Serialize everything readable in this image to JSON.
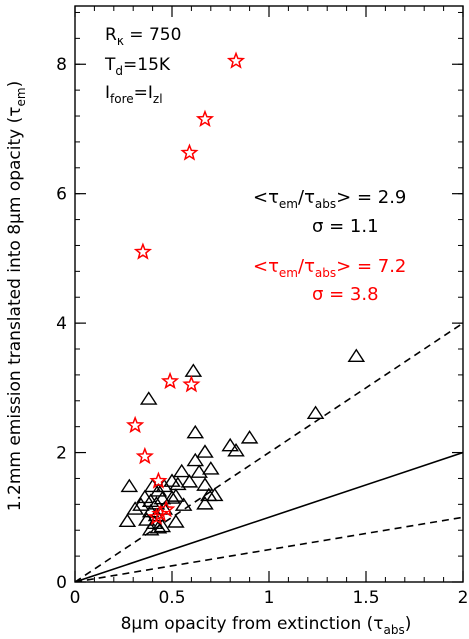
{
  "chart_data": {
    "type": "scatter",
    "xlabel": {
      "main": "8μm opacity from extinction (τ",
      "sub": "abs",
      "close": ")"
    },
    "ylabel": {
      "main": "1.2mm emission translated into 8μm opacity (τ",
      "sub": "em",
      "close": ")"
    },
    "xlim": [
      0,
      2
    ],
    "ylim": [
      0,
      8.9
    ],
    "x_ticks": [
      "0",
      "0.5",
      "1",
      "1.5",
      "2"
    ],
    "x_tick_values": [
      0,
      0.5,
      1,
      1.5,
      2
    ],
    "y_ticks": [
      "0",
      "2",
      "4",
      "6",
      "8"
    ],
    "y_tick_values": [
      0,
      2,
      4,
      6,
      8
    ],
    "params": {
      "line1": {
        "main": "R",
        "sub": "κ",
        "rest": " = 750"
      },
      "line2": {
        "main": "T",
        "sub": "d",
        "rest": "=15K"
      },
      "line3": {
        "main": "I",
        "sub": "fore",
        "mid": "=I",
        "sub2": "zl"
      }
    },
    "stats_black": {
      "mean": {
        "pre": "<τ",
        "sub1": "em",
        "mid": "/τ",
        "sub2": "abs",
        "post": "> = 2.9"
      },
      "sigma": "σ = 1.1"
    },
    "stats_red": {
      "mean": {
        "pre": "<τ",
        "sub1": "em",
        "mid": "/τ",
        "sub2": "abs",
        "post": "> = 7.2"
      },
      "sigma": "σ = 3.8"
    },
    "lines": [
      {
        "style": "solid",
        "slope": 1
      },
      {
        "style": "dashed",
        "slope": 2
      },
      {
        "style": "dashed",
        "slope": 0.5
      }
    ],
    "series": [
      {
        "marker": "triangle",
        "color": "#000000",
        "points": [
          [
            0.61,
            3.25
          ],
          [
            0.38,
            2.82
          ],
          [
            1.45,
            3.48
          ],
          [
            1.24,
            2.6
          ],
          [
            0.62,
            2.3
          ],
          [
            0.9,
            2.22
          ],
          [
            0.8,
            2.1
          ],
          [
            0.83,
            2.02
          ],
          [
            0.67,
            2.0
          ],
          [
            0.62,
            1.87
          ],
          [
            0.7,
            1.74
          ],
          [
            0.64,
            1.69
          ],
          [
            0.55,
            1.7
          ],
          [
            0.59,
            1.54
          ],
          [
            0.67,
            1.49
          ],
          [
            0.53,
            1.5
          ],
          [
            0.5,
            1.55
          ],
          [
            0.46,
            1.47
          ],
          [
            0.4,
            1.47
          ],
          [
            0.28,
            1.47
          ],
          [
            0.43,
            1.4
          ],
          [
            0.45,
            1.28
          ],
          [
            0.5,
            1.29
          ],
          [
            0.52,
            1.32
          ],
          [
            0.36,
            1.3
          ],
          [
            0.39,
            1.24
          ],
          [
            0.42,
            1.2
          ],
          [
            0.34,
            1.18
          ],
          [
            0.31,
            1.12
          ],
          [
            0.69,
            1.33
          ],
          [
            0.72,
            1.33
          ],
          [
            0.67,
            1.2
          ],
          [
            0.56,
            1.18
          ],
          [
            0.46,
            1.12
          ],
          [
            0.39,
            1.08
          ],
          [
            0.27,
            0.93
          ],
          [
            0.37,
            0.95
          ],
          [
            0.41,
            0.9
          ],
          [
            0.43,
            0.83
          ],
          [
            0.39,
            0.8
          ],
          [
            0.45,
            0.85
          ],
          [
            0.52,
            0.92
          ],
          [
            0.42,
            1.02
          ]
        ]
      },
      {
        "marker": "star",
        "color": "#ff0000",
        "points": [
          [
            0.83,
            8.05
          ],
          [
            0.67,
            7.15
          ],
          [
            0.59,
            6.63
          ],
          [
            0.35,
            5.1
          ],
          [
            0.49,
            3.1
          ],
          [
            0.6,
            3.05
          ],
          [
            0.31,
            2.42
          ],
          [
            0.36,
            1.94
          ],
          [
            0.43,
            1.56
          ],
          [
            0.47,
            1.12
          ],
          [
            0.44,
            1.05
          ],
          [
            0.42,
            1.0
          ]
        ]
      }
    ]
  }
}
